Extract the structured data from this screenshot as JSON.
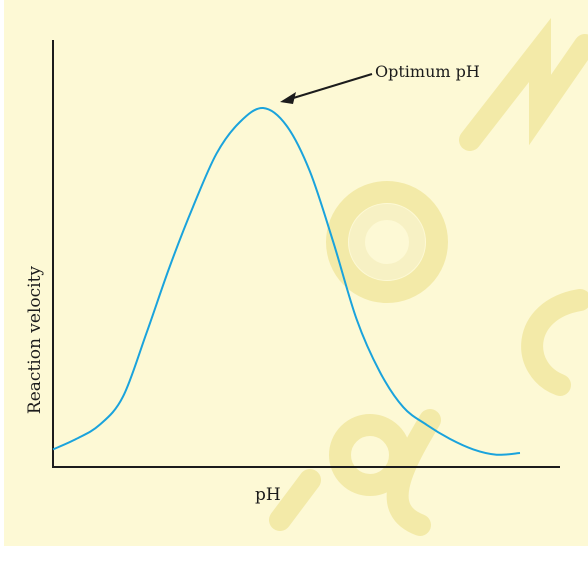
{
  "chart_data": {
    "type": "line",
    "title": "",
    "xlabel": "pH",
    "ylabel": "Reaction velocity",
    "annotation": "Optimum pH",
    "grid": false,
    "legend": "none",
    "x": [
      0,
      0.05,
      0.1,
      0.15,
      0.2,
      0.25,
      0.3,
      0.35,
      0.4,
      0.45,
      0.5,
      0.55,
      0.6,
      0.65,
      0.7,
      0.75,
      0.8,
      0.85,
      0.9,
      0.95,
      1.0
    ],
    "series": [
      {
        "values": [
          0.03,
          0.06,
          0.1,
          0.18,
          0.36,
          0.55,
          0.72,
          0.87,
          0.96,
          1.0,
          0.95,
          0.82,
          0.62,
          0.4,
          0.25,
          0.15,
          0.1,
          0.06,
          0.03,
          0.015,
          0.02
        ]
      }
    ]
  },
  "colors": {
    "background": "#fdf9d5",
    "curve": "#1aa3dc",
    "axis": "#1c1c1c",
    "watermark": "#f3eaa8"
  }
}
